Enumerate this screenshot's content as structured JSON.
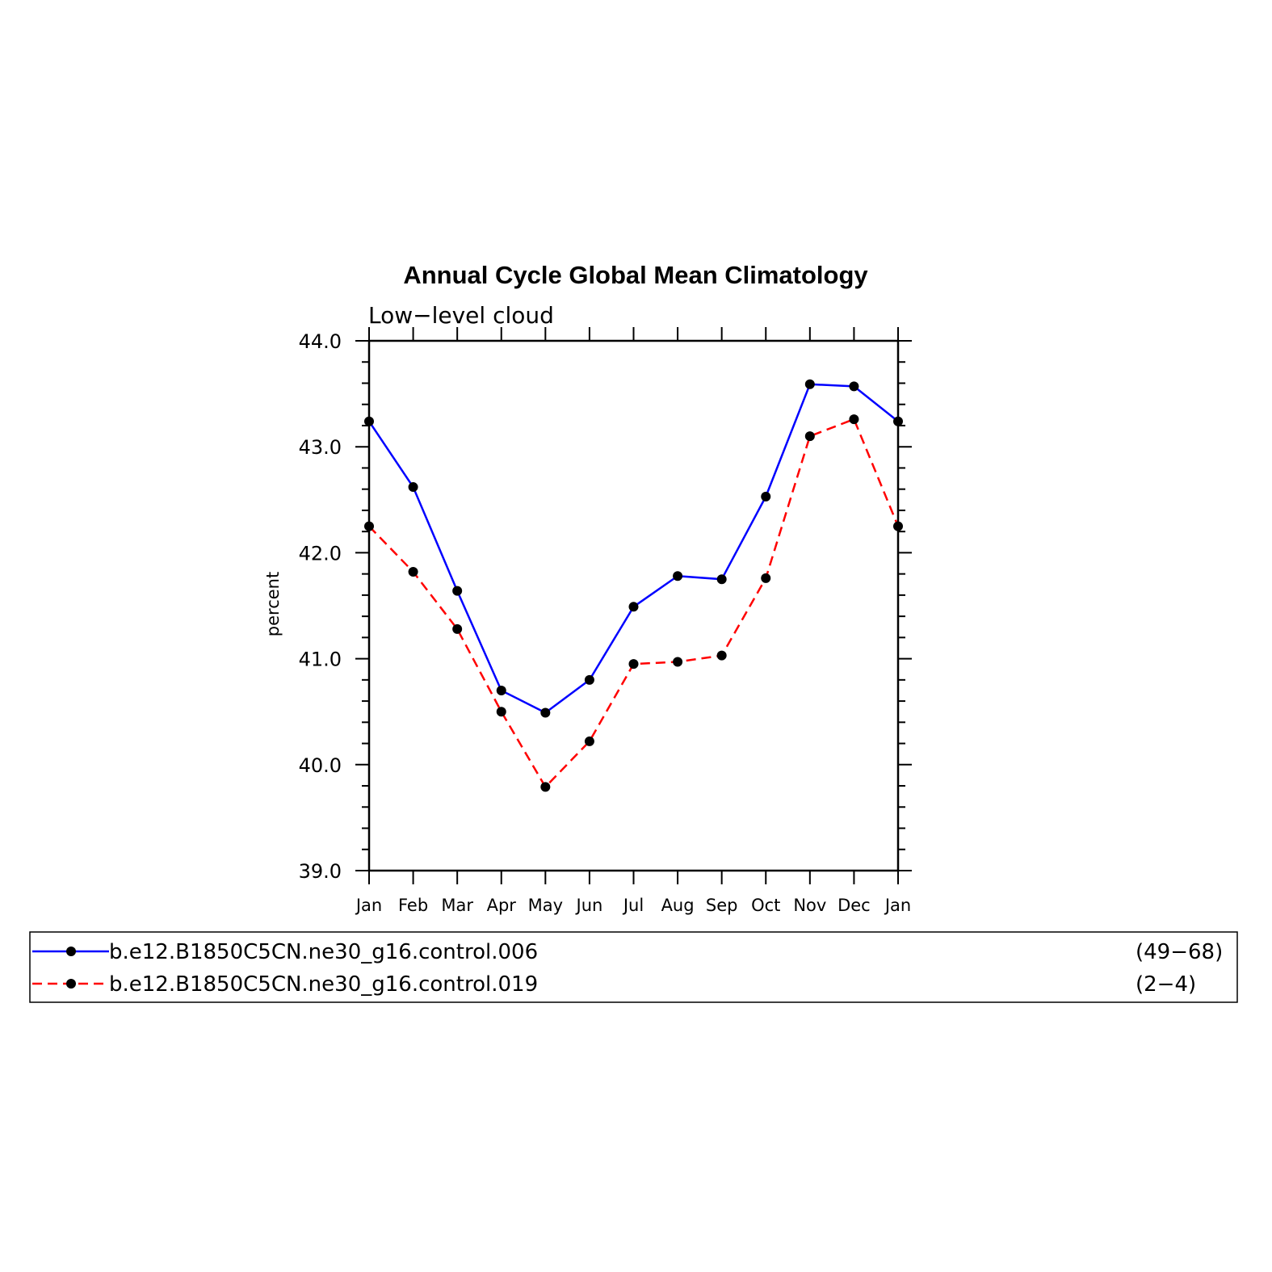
{
  "chart_data": {
    "type": "line",
    "title": "Annual Cycle Global Mean Climatology",
    "subtitle": "Low−level cloud",
    "xlabel": "",
    "ylabel": "percent",
    "categories": [
      "Jan",
      "Feb",
      "Mar",
      "Apr",
      "May",
      "Jun",
      "Jul",
      "Aug",
      "Sep",
      "Oct",
      "Nov",
      "Dec",
      "Jan"
    ],
    "ylim": [
      39.0,
      44.0
    ],
    "yticks": [
      "39.0",
      "40.0",
      "41.0",
      "42.0",
      "43.0",
      "44.0"
    ],
    "grid": false,
    "legend_position": "bottom",
    "series": [
      {
        "name": "b.e12.B1850C5CN.ne30_g16.control.006",
        "years": "(49−68)",
        "color": "#0000ff",
        "style": "solid",
        "values": [
          43.24,
          42.62,
          41.64,
          40.7,
          40.49,
          40.8,
          41.49,
          41.78,
          41.75,
          42.53,
          43.59,
          43.57,
          43.24
        ]
      },
      {
        "name": "b.e12.B1850C5CN.ne30_g16.control.019",
        "years": "(2−4)",
        "color": "#ff0000",
        "style": "dashed",
        "values": [
          42.25,
          41.82,
          41.28,
          40.5,
          39.79,
          40.22,
          40.95,
          40.97,
          41.03,
          41.76,
          43.1,
          43.26,
          42.25
        ]
      }
    ]
  }
}
